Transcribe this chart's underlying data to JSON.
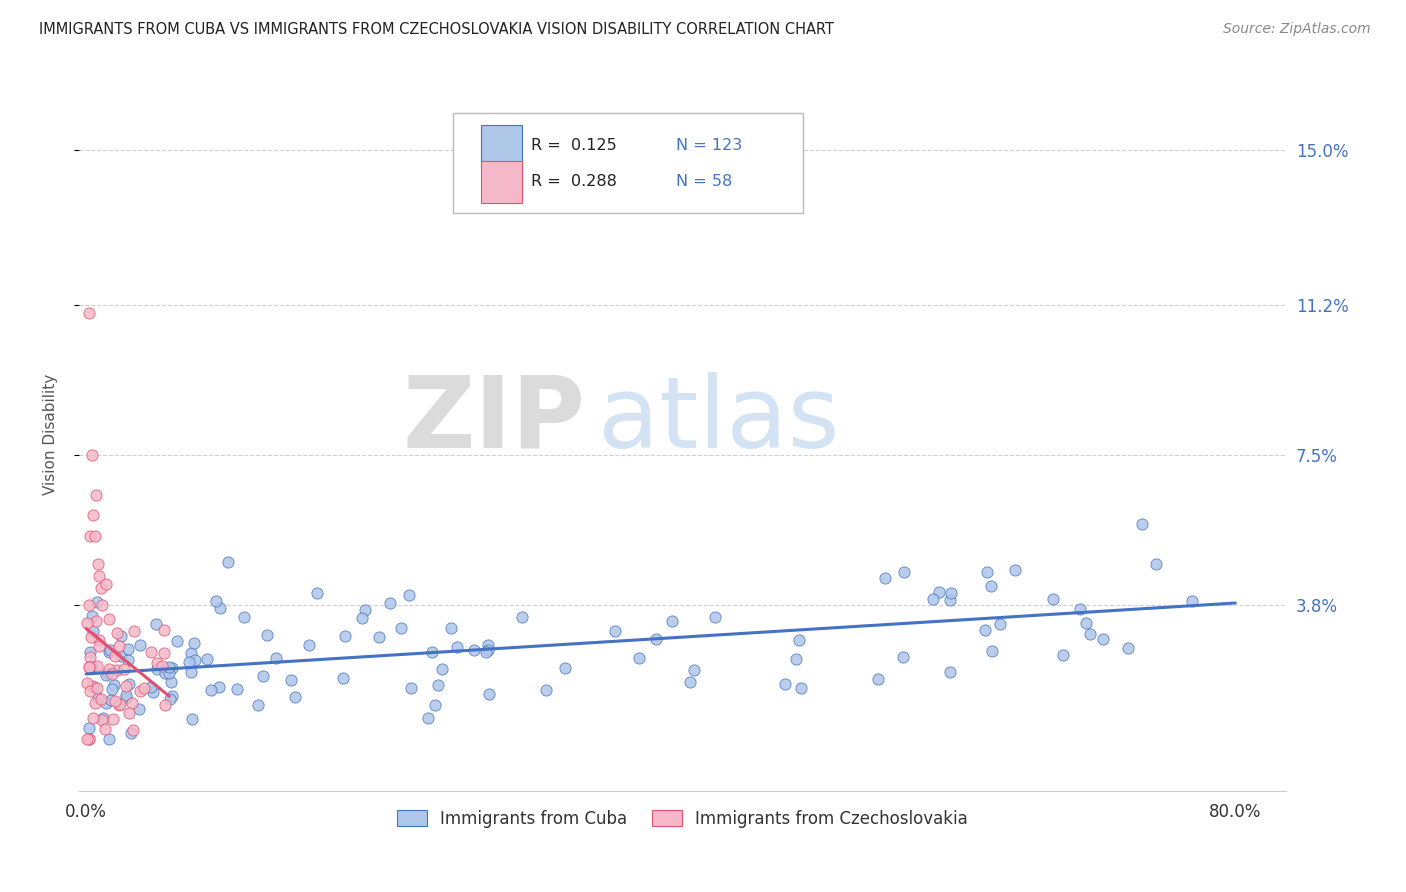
{
  "title": "IMMIGRANTS FROM CUBA VS IMMIGRANTS FROM CZECHOSLOVAKIA VISION DISABILITY CORRELATION CHART",
  "source": "Source: ZipAtlas.com",
  "ylabel": "Vision Disability",
  "xlim": [
    -0.005,
    0.835
  ],
  "ylim": [
    -0.008,
    0.168
  ],
  "yticks": [
    0.038,
    0.075,
    0.112,
    0.15
  ],
  "ytick_labels": [
    "3.8%",
    "7.5%",
    "11.2%",
    "15.0%"
  ],
  "cuba_color": "#aec6e8",
  "cuba_color_dark": "#4472c4",
  "czech_color": "#f4b8c8",
  "czech_color_dark": "#e05070",
  "cuba_R": 0.125,
  "cuba_N": 123,
  "czech_R": 0.288,
  "czech_N": 58,
  "watermark_zip": "ZIP",
  "watermark_atlas": "atlas",
  "background_color": "#ffffff",
  "grid_color": "#d0d0d0",
  "tick_color": "#4472c4"
}
